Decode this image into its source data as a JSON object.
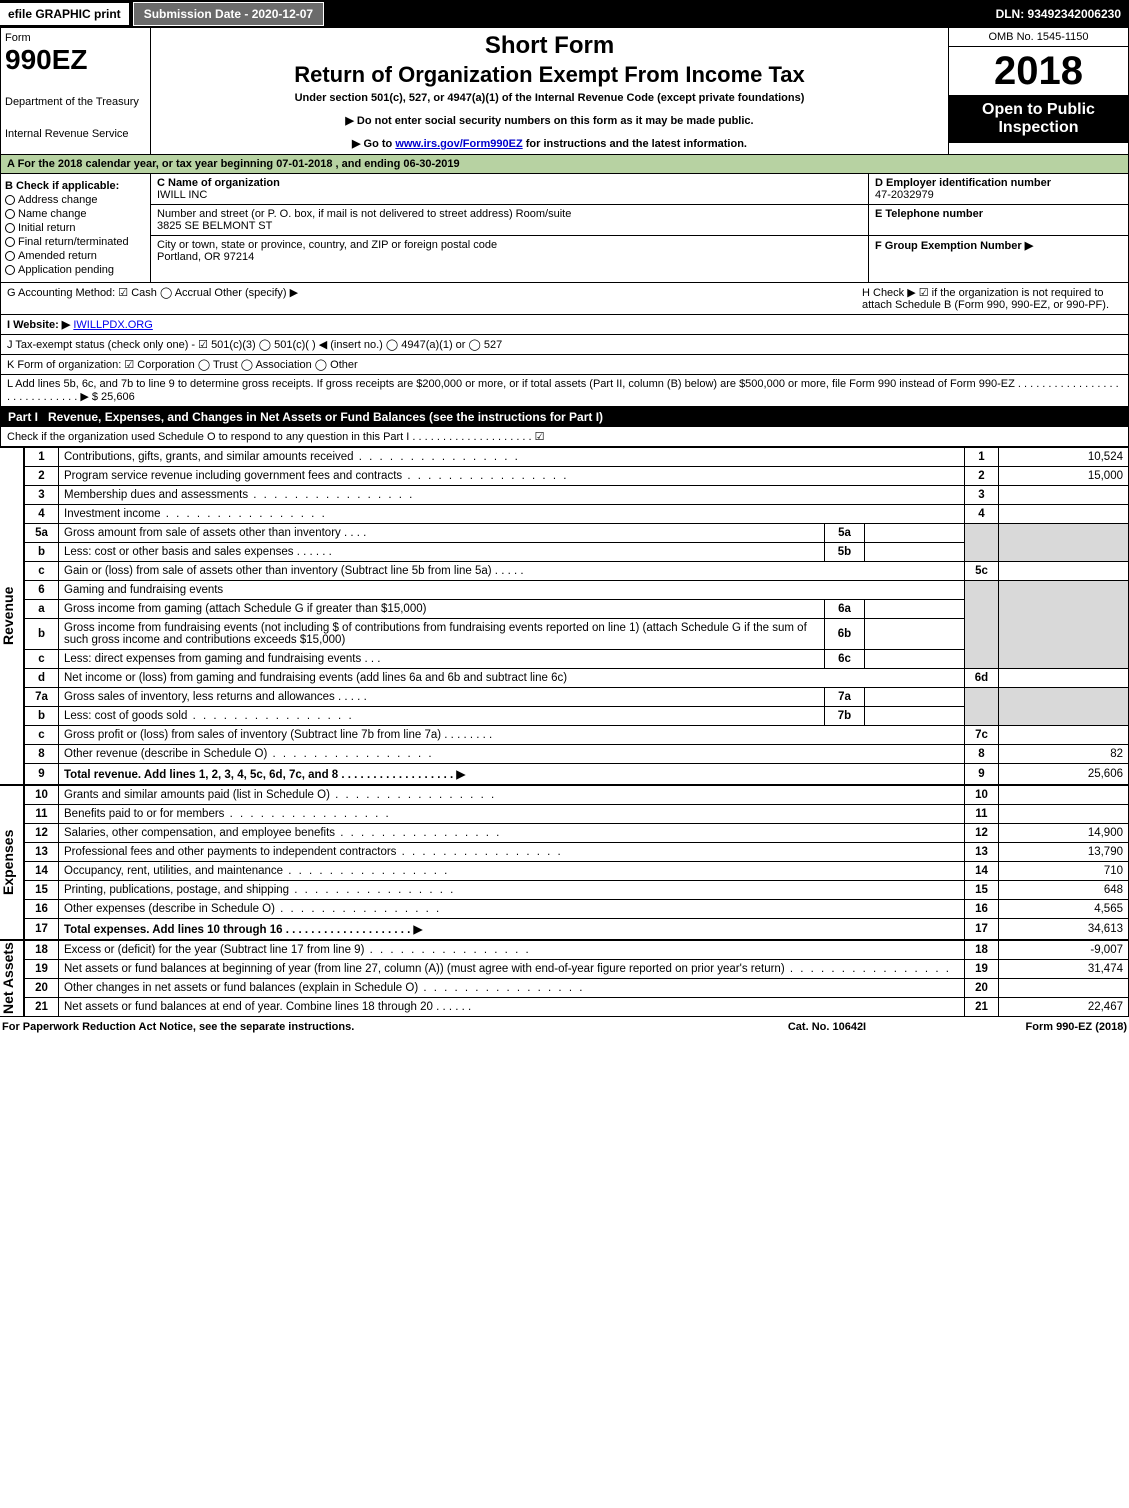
{
  "topbar": {
    "efile": "efile GRAPHIC print",
    "subdate": "Submission Date - 2020-12-07",
    "dln": "DLN: 93492342006230"
  },
  "header": {
    "form_word": "Form",
    "form_no": "990EZ",
    "dept1": "Department of the Treasury",
    "dept2": "Internal Revenue Service",
    "short": "Short Form",
    "return_title": "Return of Organization Exempt From Income Tax",
    "subtitle": "Under section 501(c), 527, or 4947(a)(1) of the Internal Revenue Code (except private foundations)",
    "warn": "▶ Do not enter social security numbers on this form as it may be made public.",
    "goto_pre": "▶ Go to ",
    "goto_link": "www.irs.gov/Form990EZ",
    "goto_post": " for instructions and the latest information.",
    "omb": "OMB No. 1545-1150",
    "year": "2018",
    "open": "Open to Public Inspection"
  },
  "rowA": "A   For the 2018 calendar year, or tax year beginning 07-01-2018             , and ending 06-30-2019",
  "blockB": {
    "title": "B  Check if applicable:",
    "checks": [
      "Address change",
      "Name change",
      "Initial return",
      "Final return/terminated",
      "Amended return",
      "Application pending"
    ],
    "c_label": "C Name of organization",
    "c_name": "IWILL INC",
    "addr_label": "Number and street (or P. O. box, if mail is not delivered to street address)        Room/suite",
    "addr": "3825 SE BELMONT ST",
    "city_label": "City or town, state or province, country, and ZIP or foreign postal code",
    "city": "Portland, OR  97214",
    "d_label": "D Employer identification number",
    "d_val": "47-2032979",
    "e_label": "E Telephone number",
    "f_label": "F Group Exemption Number   ▶"
  },
  "rowG": {
    "g": "G Accounting Method:   ☑ Cash  ◯ Accrual   Other (specify) ▶",
    "h": "H   Check ▶ ☑ if the organization is not required to attach Schedule B (Form 990, 990-EZ, or 990-PF)."
  },
  "rowI": {
    "label": "I Website: ▶",
    "site": "IWILLPDX.ORG"
  },
  "rowJ": "J Tax-exempt status (check only one) -  ☑ 501(c)(3)  ◯ 501(c)(  ) ◀ (insert no.)  ◯ 4947(a)(1) or  ◯ 527",
  "rowK": "K Form of organization:   ☑ Corporation   ◯ Trust   ◯ Association   ◯ Other",
  "rowL": {
    "text": "L Add lines 5b, 6c, and 7b to line 9 to determine gross receipts. If gross receipts are $200,000 or more, or if total assets (Part II, column (B) below) are $500,000 or more, file Form 990 instead of Form 990-EZ  .  .  .  .  .  .  .  .  .  .  .  .  .  .  .  .  .  .  .  .  .  .  .  .  .  .  .  .  .  ▶ $ ",
    "val": "25,606"
  },
  "part1": {
    "num": "Part I",
    "title": "Revenue, Expenses, and Changes in Net Assets or Fund Balances (see the instructions for Part I)",
    "check_line": "Check if the organization used Schedule O to respond to any question in this Part I .  .  .  .  .  .  .  .  .  .  .  .  .  .  .  .  .  .  .  .  ☑"
  },
  "sections": {
    "revenue": "Revenue",
    "expenses": "Expenses",
    "netassets": "Net Assets"
  },
  "lines": {
    "l1": {
      "no": "1",
      "label": "Contributions, gifts, grants, and similar amounts received",
      "ln": "1",
      "val": "10,524"
    },
    "l2": {
      "no": "2",
      "label": "Program service revenue including government fees and contracts",
      "ln": "2",
      "val": "15,000"
    },
    "l3": {
      "no": "3",
      "label": "Membership dues and assessments",
      "ln": "3",
      "val": ""
    },
    "l4": {
      "no": "4",
      "label": "Investment income",
      "ln": "4",
      "val": ""
    },
    "l5a": {
      "no": "5a",
      "label": "Gross amount from sale of assets other than inventory",
      "sub": "5a",
      "subval": ""
    },
    "l5b": {
      "no": "b",
      "label": "Less: cost or other basis and sales expenses",
      "sub": "5b",
      "subval": ""
    },
    "l5c": {
      "no": "c",
      "label": "Gain or (loss) from sale of assets other than inventory (Subtract line 5b from line 5a)",
      "ln": "5c",
      "val": ""
    },
    "l6": {
      "no": "6",
      "label": "Gaming and fundraising events"
    },
    "l6a": {
      "no": "a",
      "label": "Gross income from gaming (attach Schedule G if greater than $15,000)",
      "sub": "6a",
      "subval": ""
    },
    "l6b": {
      "no": "b",
      "label": "Gross income from fundraising events (not including $                    of contributions from fundraising events reported on line 1) (attach Schedule G if the sum of such gross income and contributions exceeds $15,000)",
      "sub": "6b",
      "subval": ""
    },
    "l6c": {
      "no": "c",
      "label": "Less: direct expenses from gaming and fundraising events",
      "sub": "6c",
      "subval": ""
    },
    "l6d": {
      "no": "d",
      "label": "Net income or (loss) from gaming and fundraising events (add lines 6a and 6b and subtract line 6c)",
      "ln": "6d",
      "val": ""
    },
    "l7a": {
      "no": "7a",
      "label": "Gross sales of inventory, less returns and allowances",
      "sub": "7a",
      "subval": ""
    },
    "l7b": {
      "no": "b",
      "label": "Less: cost of goods sold",
      "sub": "7b",
      "subval": ""
    },
    "l7c": {
      "no": "c",
      "label": "Gross profit or (loss) from sales of inventory (Subtract line 7b from line 7a)",
      "ln": "7c",
      "val": ""
    },
    "l8": {
      "no": "8",
      "label": "Other revenue (describe in Schedule O)",
      "ln": "8",
      "val": "82"
    },
    "l9": {
      "no": "9",
      "label": "Total revenue. Add lines 1, 2, 3, 4, 5c, 6d, 7c, and 8   .  .  .  .  .  .  .  .  .  .  .  .  .  .  .  .  .  .  ▶",
      "ln": "9",
      "val": "25,606"
    },
    "l10": {
      "no": "10",
      "label": "Grants and similar amounts paid (list in Schedule O)",
      "ln": "10",
      "val": ""
    },
    "l11": {
      "no": "11",
      "label": "Benefits paid to or for members",
      "ln": "11",
      "val": ""
    },
    "l12": {
      "no": "12",
      "label": "Salaries, other compensation, and employee benefits",
      "ln": "12",
      "val": "14,900"
    },
    "l13": {
      "no": "13",
      "label": "Professional fees and other payments to independent contractors",
      "ln": "13",
      "val": "13,790"
    },
    "l14": {
      "no": "14",
      "label": "Occupancy, rent, utilities, and maintenance",
      "ln": "14",
      "val": "710"
    },
    "l15": {
      "no": "15",
      "label": "Printing, publications, postage, and shipping",
      "ln": "15",
      "val": "648"
    },
    "l16": {
      "no": "16",
      "label": "Other expenses (describe in Schedule O)",
      "ln": "16",
      "val": "4,565"
    },
    "l17": {
      "no": "17",
      "label": "Total expenses. Add lines 10 through 16   .  .  .  .  .  .  .  .  .  .  .  .  .  .  .  .  .  .  .  .  ▶",
      "ln": "17",
      "val": "34,613"
    },
    "l18": {
      "no": "18",
      "label": "Excess or (deficit) for the year (Subtract line 17 from line 9)",
      "ln": "18",
      "val": "-9,007"
    },
    "l19": {
      "no": "19",
      "label": "Net assets or fund balances at beginning of year (from line 27, column (A)) (must agree with end-of-year figure reported on prior year's return)",
      "ln": "19",
      "val": "31,474"
    },
    "l20": {
      "no": "20",
      "label": "Other changes in net assets or fund balances (explain in Schedule O)",
      "ln": "20",
      "val": ""
    },
    "l21": {
      "no": "21",
      "label": "Net assets or fund balances at end of year. Combine lines 18 through 20",
      "ln": "21",
      "val": "22,467"
    }
  },
  "footer": {
    "left": "For Paperwork Reduction Act Notice, see the separate instructions.",
    "center": "Cat. No. 10642I",
    "right": "Form 990-EZ (2018)"
  },
  "colors": {
    "greenrow": "#b7d2a2",
    "greycell": "#d9d9d9"
  }
}
